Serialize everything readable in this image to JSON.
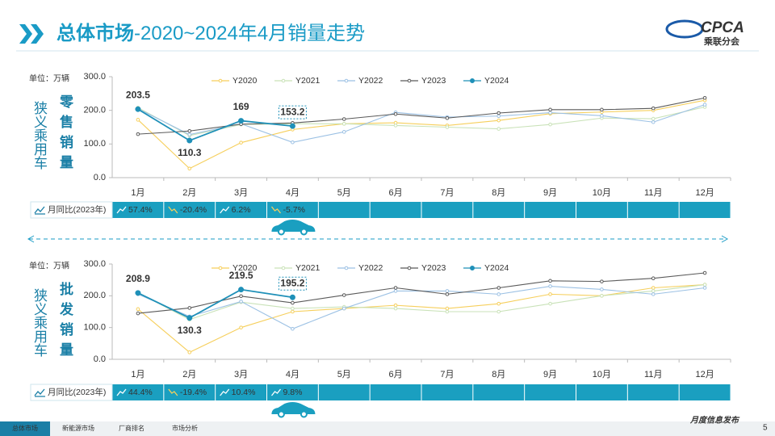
{
  "header": {
    "title_bold": "总体市场",
    "title_rest": "-2020~2024年4月销量走势",
    "logo": "CPCA",
    "logo_sub": "乘联分会"
  },
  "chart_data": [
    {
      "type": "line",
      "side_label": "狭义乘用车",
      "metric_label": "零售销量",
      "unit": "单位：万辆",
      "categories": [
        "1月",
        "2月",
        "3月",
        "4月",
        "5月",
        "6月",
        "7月",
        "8月",
        "9月",
        "10月",
        "11月",
        "12月"
      ],
      "series": [
        {
          "name": "Y2020",
          "color": "#f6cf5c",
          "values": [
            172,
            27,
            104,
            143,
            160,
            163,
            155,
            170,
            190,
            195,
            200,
            230
          ]
        },
        {
          "name": "Y2021",
          "color": "#c9e2b8",
          "values": [
            208,
            125,
            158,
            160,
            160,
            155,
            150,
            145,
            158,
            177,
            175,
            210
          ]
        },
        {
          "name": "Y2022",
          "color": "#9cc1e4",
          "values": [
            205,
            128,
            160,
            105,
            136,
            194,
            180,
            183,
            193,
            184,
            165,
            217
          ]
        },
        {
          "name": "Y2023",
          "color": "#5a5a5a",
          "values": [
            129.3,
            138.6,
            159,
            162.5,
            174,
            189,
            177,
            192,
            202,
            202,
            206,
            237
          ]
        },
        {
          "name": "Y2024",
          "color": "#1f90b8",
          "values": [
            203.5,
            110.3,
            169.0,
            153.2,
            null,
            null,
            null,
            null,
            null,
            null,
            null,
            null
          ]
        }
      ],
      "ylim": [
        0,
        300
      ],
      "yticks": [
        {
          "value": 0,
          "label": "0.0"
        },
        {
          "value": 100,
          "label": "100.0"
        },
        {
          "value": 200,
          "label": "200.0"
        },
        {
          "value": 300,
          "label": "300.0"
        }
      ],
      "grid": false,
      "yoy_label": "月同比(2023年)",
      "yoy_values": [
        "57.4%",
        "-20.4%",
        "6.2%",
        "-5.7%"
      ]
    },
    {
      "type": "line",
      "side_label": "狭义乘用车",
      "metric_label": "批发销量",
      "unit": "单位：万辆",
      "categories": [
        "1月",
        "2月",
        "3月",
        "4月",
        "5月",
        "6月",
        "7月",
        "8月",
        "9月",
        "10月",
        "11月",
        "12月"
      ],
      "series": [
        {
          "name": "Y2020",
          "color": "#f6cf5c",
          "values": [
            158,
            22,
            100,
            150,
            160,
            170,
            160,
            175,
            205,
            200,
            225,
            235
          ]
        },
        {
          "name": "Y2021",
          "color": "#c9e2b8",
          "values": [
            210,
            125,
            180,
            160,
            165,
            160,
            150,
            150,
            175,
            200,
            215,
            235
          ]
        },
        {
          "name": "Y2022",
          "color": "#9cc1e4",
          "values": [
            205,
            135,
            182,
            96,
            160,
            215,
            215,
            205,
            230,
            220,
            205,
            225
          ]
        },
        {
          "name": "Y2023",
          "color": "#5a5a5a",
          "values": [
            144.7,
            161.7,
            198.8,
            177.8,
            202,
            225,
            205,
            225,
            247,
            245,
            255,
            272
          ]
        },
        {
          "name": "Y2024",
          "color": "#1f90b8",
          "values": [
            208.9,
            130.3,
            219.5,
            195.2,
            null,
            null,
            null,
            null,
            null,
            null,
            null,
            null
          ]
        }
      ],
      "ylim": [
        0,
        300
      ],
      "yticks": [
        {
          "value": 0,
          "label": "0.0"
        },
        {
          "value": 100,
          "label": "100.0"
        },
        {
          "value": 200,
          "label": "200.0"
        },
        {
          "value": 300,
          "label": "300.0"
        }
      ],
      "grid": false,
      "yoy_label": "月同比(2023年)",
      "yoy_values": [
        "44.4%",
        "-19.4%",
        "10.4%",
        "9.8%"
      ]
    }
  ],
  "footer": {
    "tabs": [
      "总体市场",
      "新能源市场",
      "厂商排名",
      "市场分析"
    ],
    "tagline": "月度信息发布",
    "page": 5
  }
}
